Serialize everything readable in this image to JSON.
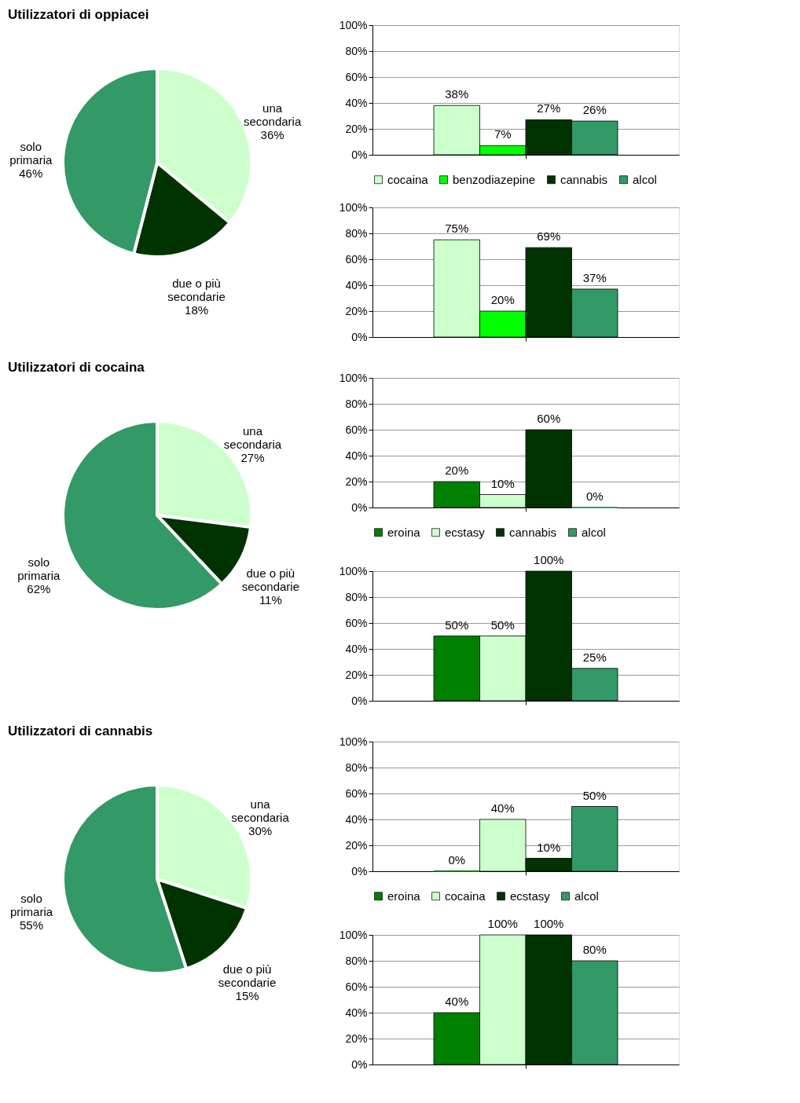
{
  "chart_data": [
    {
      "type": "pie",
      "title": "Utilizzatori di oppiacei",
      "categories": [
        "una secondaria",
        "due o più secondarie",
        "solo primaria"
      ],
      "values": [
        36,
        18,
        46
      ],
      "value_labels": [
        "36%",
        "18%",
        "46%"
      ],
      "colors": [
        "#ccffcc",
        "#003300",
        "#339966"
      ]
    },
    {
      "type": "bar",
      "categories": [
        null
      ],
      "tick_labels": "y",
      "grid": "y",
      "legend": "bottom",
      "ylim": [
        0,
        100
      ],
      "yticks": [
        {
          "value": 0,
          "label": "0%"
        },
        {
          "value": 20,
          "label": "20%"
        },
        {
          "value": 40,
          "label": "40%"
        },
        {
          "value": 60,
          "label": "60%"
        },
        {
          "value": 80,
          "label": "80%"
        },
        {
          "value": 100,
          "label": "100%"
        }
      ],
      "series": [
        {
          "name": "cocaina",
          "color": "#ccffcc",
          "values": [
            38
          ],
          "value_labels": [
            "38%"
          ]
        },
        {
          "name": "benzodiazepine",
          "color": "#00ff00",
          "values": [
            7
          ],
          "value_labels": [
            "7%"
          ]
        },
        {
          "name": "cannabis",
          "color": "#003300",
          "values": [
            27
          ],
          "value_labels": [
            "27%"
          ]
        },
        {
          "name": "alcol",
          "color": "#339966",
          "values": [
            26
          ],
          "value_labels": [
            "26%"
          ]
        }
      ]
    },
    {
      "type": "bar",
      "categories": [
        null
      ],
      "tick_labels": "y",
      "grid": "y",
      "ylim": [
        0,
        100
      ],
      "yticks": [
        {
          "value": 0,
          "label": "0%"
        },
        {
          "value": 20,
          "label": "20%"
        },
        {
          "value": 40,
          "label": "40%"
        },
        {
          "value": 60,
          "label": "60%"
        },
        {
          "value": 80,
          "label": "80%"
        },
        {
          "value": 100,
          "label": "100%"
        }
      ],
      "series": [
        {
          "color": "#ccffcc",
          "values": [
            75
          ],
          "value_labels": [
            "75%"
          ]
        },
        {
          "color": "#00ff00",
          "values": [
            20
          ],
          "value_labels": [
            "20%"
          ]
        },
        {
          "color": "#003300",
          "values": [
            69
          ],
          "value_labels": [
            "69%"
          ]
        },
        {
          "color": "#339966",
          "values": [
            37
          ],
          "value_labels": [
            "37%"
          ]
        }
      ]
    },
    {
      "type": "pie",
      "title": "Utilizzatori di cocaina",
      "categories": [
        "una secondaria",
        "due o più secondarie",
        "solo primaria"
      ],
      "values": [
        27,
        11,
        62
      ],
      "value_labels": [
        "27%",
        "11%",
        "62%"
      ],
      "colors": [
        "#ccffcc",
        "#003300",
        "#339966"
      ]
    },
    {
      "type": "bar",
      "categories": [
        null
      ],
      "tick_labels": "y",
      "grid": "y",
      "legend": "bottom",
      "ylim": [
        0,
        100
      ],
      "yticks": [
        {
          "value": 0,
          "label": "0%"
        },
        {
          "value": 20,
          "label": "20%"
        },
        {
          "value": 40,
          "label": "40%"
        },
        {
          "value": 60,
          "label": "60%"
        },
        {
          "value": 80,
          "label": "80%"
        },
        {
          "value": 100,
          "label": "100%"
        }
      ],
      "series": [
        {
          "name": "eroina",
          "color": "#008000",
          "values": [
            20
          ],
          "value_labels": [
            "20%"
          ]
        },
        {
          "name": "ecstasy",
          "color": "#ccffcc",
          "values": [
            10
          ],
          "value_labels": [
            "10%"
          ]
        },
        {
          "name": "cannabis",
          "color": "#003300",
          "values": [
            60
          ],
          "value_labels": [
            "60%"
          ]
        },
        {
          "name": "alcol",
          "color": "#339966",
          "values": [
            0
          ],
          "value_labels": [
            "0%"
          ]
        }
      ]
    },
    {
      "type": "bar",
      "categories": [
        null
      ],
      "tick_labels": "y",
      "grid": "y",
      "ylim": [
        0,
        100
      ],
      "yticks": [
        {
          "value": 0,
          "label": "0%"
        },
        {
          "value": 20,
          "label": "20%"
        },
        {
          "value": 40,
          "label": "40%"
        },
        {
          "value": 60,
          "label": "60%"
        },
        {
          "value": 80,
          "label": "80%"
        },
        {
          "value": 100,
          "label": "100%"
        }
      ],
      "series": [
        {
          "color": "#008000",
          "values": [
            50
          ],
          "value_labels": [
            "50%"
          ]
        },
        {
          "color": "#ccffcc",
          "values": [
            50
          ],
          "value_labels": [
            "50%"
          ]
        },
        {
          "color": "#003300",
          "values": [
            100
          ],
          "value_labels": [
            "100%"
          ]
        },
        {
          "color": "#339966",
          "values": [
            25
          ],
          "value_labels": [
            "25%"
          ]
        }
      ]
    },
    {
      "type": "pie",
      "title": "Utilizzatori di cannabis",
      "categories": [
        "una secondaria",
        "due o più secondarie",
        "solo primaria"
      ],
      "values": [
        30,
        15,
        55
      ],
      "value_labels": [
        "30%",
        "15%",
        "55%"
      ],
      "colors": [
        "#ccffcc",
        "#003300",
        "#339966"
      ]
    },
    {
      "type": "bar",
      "categories": [
        null
      ],
      "tick_labels": "y",
      "grid": "y",
      "legend": "bottom",
      "ylim": [
        0,
        100
      ],
      "yticks": [
        {
          "value": 0,
          "label": "0%"
        },
        {
          "value": 20,
          "label": "20%"
        },
        {
          "value": 40,
          "label": "40%"
        },
        {
          "value": 60,
          "label": "60%"
        },
        {
          "value": 80,
          "label": "80%"
        },
        {
          "value": 100,
          "label": "100%"
        }
      ],
      "series": [
        {
          "name": "eroina",
          "color": "#008000",
          "values": [
            0
          ],
          "value_labels": [
            "0%"
          ]
        },
        {
          "name": "cocaina",
          "color": "#ccffcc",
          "values": [
            40
          ],
          "value_labels": [
            "40%"
          ]
        },
        {
          "name": "ecstasy",
          "color": "#003300",
          "values": [
            10
          ],
          "value_labels": [
            "10%"
          ]
        },
        {
          "name": "alcol",
          "color": "#339966",
          "values": [
            50
          ],
          "value_labels": [
            "50%"
          ]
        }
      ]
    },
    {
      "type": "bar",
      "categories": [
        null
      ],
      "tick_labels": "y",
      "grid": "y",
      "ylim": [
        0,
        100
      ],
      "yticks": [
        {
          "value": 0,
          "label": "0%"
        },
        {
          "value": 20,
          "label": "20%"
        },
        {
          "value": 40,
          "label": "40%"
        },
        {
          "value": 60,
          "label": "60%"
        },
        {
          "value": 80,
          "label": "80%"
        },
        {
          "value": 100,
          "label": "100%"
        }
      ],
      "series": [
        {
          "color": "#008000",
          "values": [
            40
          ],
          "value_labels": [
            "40%"
          ]
        },
        {
          "color": "#ccffcc",
          "values": [
            100
          ],
          "value_labels": [
            "100%"
          ]
        },
        {
          "color": "#003300",
          "values": [
            100
          ],
          "value_labels": [
            "100%"
          ]
        },
        {
          "color": "#339966",
          "values": [
            80
          ],
          "value_labels": [
            "80%"
          ]
        }
      ]
    }
  ]
}
